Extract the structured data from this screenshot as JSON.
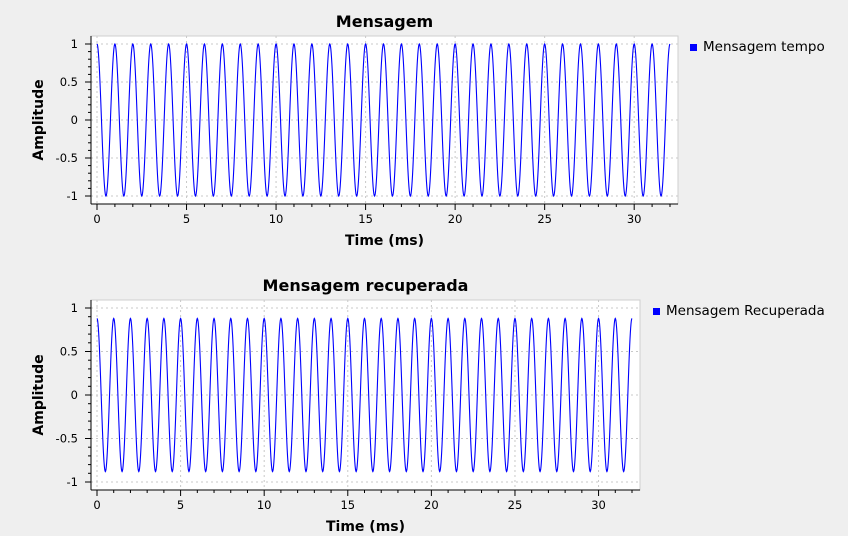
{
  "chart_data": [
    {
      "type": "line",
      "title": "Mensagem",
      "xlabel": "Time (ms)",
      "ylabel": "Amplitude",
      "xlim": [
        0,
        32
      ],
      "ylim": [
        -1,
        1
      ],
      "xticks": [
        0,
        5,
        10,
        15,
        20,
        25,
        30
      ],
      "yticks": [
        1,
        0.5,
        0,
        -0.5,
        -1
      ],
      "ytick_labels": [
        "1",
        "0.5",
        "0",
        "-0.5",
        "-1"
      ],
      "grid": true,
      "legend_position": "right",
      "series": [
        {
          "name": "Mensagem tempo",
          "color": "#0000ff",
          "waveform": "sine",
          "amplitude": 1.0,
          "period": 1.0,
          "x_start": 0,
          "x_end": 32
        }
      ]
    },
    {
      "type": "line",
      "title": "Mensagem recuperada",
      "xlabel": "Time (ms)",
      "ylabel": "Amplitude",
      "xlim": [
        0,
        32
      ],
      "ylim": [
        -1,
        1
      ],
      "xticks": [
        0,
        5,
        10,
        15,
        20,
        25,
        30
      ],
      "yticks": [
        1,
        0.5,
        0,
        -0.5,
        -1
      ],
      "ytick_labels": [
        "1",
        "0.5",
        "0",
        "-0.5",
        "-1"
      ],
      "grid": true,
      "legend_position": "right",
      "series": [
        {
          "name": "Mensagem Recuperada",
          "color": "#0000ff",
          "waveform": "sine",
          "amplitude": 0.88,
          "period": 1.0,
          "x_start": 0,
          "x_end": 32
        }
      ]
    }
  ]
}
